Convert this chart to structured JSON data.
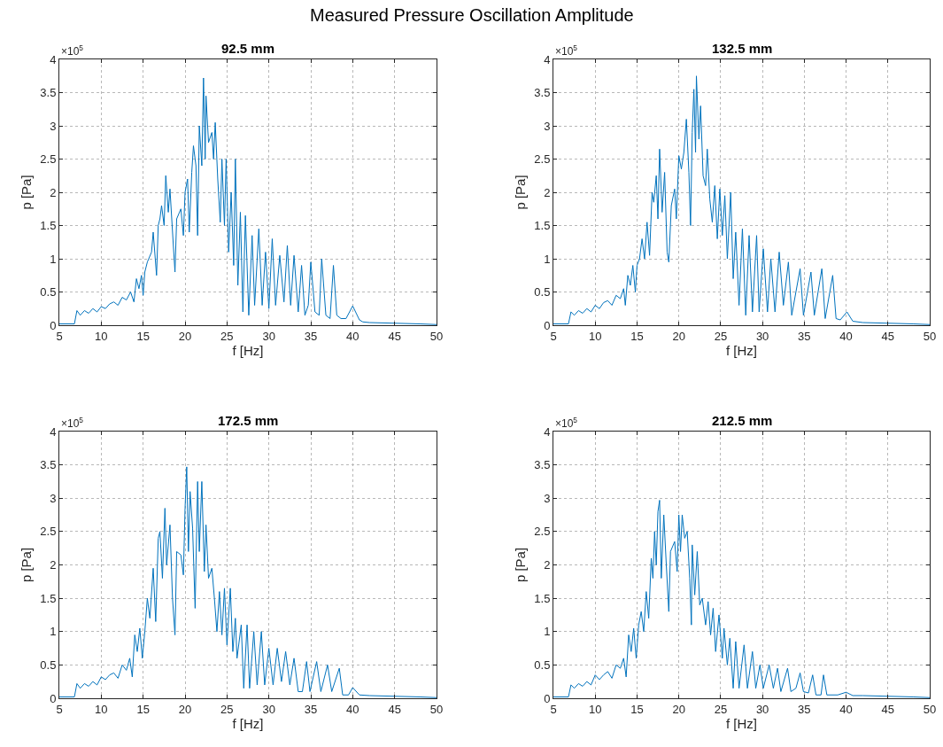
{
  "chart_data": [
    {
      "type": "line",
      "title": "92.5 mm",
      "xlabel": "f [Hz]",
      "ylabel": "p [Pa]",
      "annotations": [
        "×10$^{5}$",
        "Measured Pressure Oscillation Amplitude"
      ],
      "xlim": [
        5,
        50
      ],
      "ylim": [
        0,
        4
      ],
      "xticks": [
        5,
        10,
        15,
        20,
        25,
        30,
        35,
        40,
        45,
        50
      ],
      "yticks": [
        0,
        0.5,
        1,
        1.5,
        2,
        2.5,
        3,
        3.5,
        4
      ],
      "grid": true,
      "x": [
        5,
        6.8,
        7.1,
        7.5,
        8,
        8.5,
        9,
        9.5,
        10,
        10.5,
        11,
        11.5,
        12,
        12.5,
        13,
        13.5,
        13.9,
        14.2,
        14.5,
        14.8,
        15,
        15.2,
        15.5,
        16,
        16.2,
        16.6,
        16.8,
        17,
        17.2,
        17.5,
        17.7,
        18,
        18.2,
        18.6,
        18.8,
        19,
        19.5,
        19.8,
        20,
        20.3,
        20.5,
        20.8,
        21,
        21.3,
        21.5,
        21.7,
        22,
        22.2,
        22.4,
        22.5,
        22.8,
        23.2,
        23.4,
        23.6,
        23.9,
        24.2,
        24.4,
        24.7,
        24.9,
        25.2,
        25.5,
        25.8,
        26,
        26.3,
        26.6,
        26.9,
        27.2,
        27.6,
        28,
        28.3,
        28.8,
        29.2,
        29.6,
        30,
        30.4,
        30.8,
        31.3,
        31.8,
        32.2,
        32.6,
        33,
        33.5,
        33.9,
        34.3,
        34.7,
        35,
        35.5,
        36,
        36.3,
        36.8,
        37.3,
        37.7,
        38.1,
        38.6,
        39.2,
        40,
        40.8,
        41.2,
        42,
        45,
        48,
        50
      ],
      "series": [
        {
          "color": "#0072bd",
          "values": [
            0.02,
            0.02,
            0.22,
            0.15,
            0.22,
            0.18,
            0.25,
            0.2,
            0.28,
            0.25,
            0.32,
            0.35,
            0.3,
            0.42,
            0.38,
            0.5,
            0.35,
            0.7,
            0.55,
            0.75,
            0.45,
            0.8,
            0.95,
            1.1,
            1.4,
            0.75,
            1.5,
            1.6,
            1.8,
            1.5,
            2.25,
            1.7,
            2.05,
            1.2,
            0.8,
            1.6,
            1.75,
            1.35,
            2.0,
            2.2,
            1.4,
            2.3,
            2.7,
            2.4,
            1.35,
            3.0,
            2.4,
            3.72,
            2.5,
            3.45,
            2.75,
            2.9,
            2.5,
            3.05,
            2.2,
            1.55,
            2.5,
            1.5,
            2.5,
            1.1,
            2.0,
            0.9,
            2.5,
            0.6,
            1.7,
            0.2,
            1.65,
            0.15,
            1.35,
            0.3,
            1.45,
            0.3,
            1.1,
            0.25,
            1.3,
            0.3,
            1.05,
            0.35,
            1.2,
            0.3,
            1.05,
            0.2,
            0.9,
            0.15,
            0.3,
            0.95,
            0.2,
            0.15,
            1.0,
            0.15,
            0.1,
            0.9,
            0.15,
            0.1,
            0.1,
            0.29,
            0.08,
            0.05,
            0.04,
            0.03,
            0.02,
            0.01
          ]
        }
      ]
    },
    {
      "type": "line",
      "title": "132.5 mm",
      "xlabel": "f [Hz]",
      "ylabel": "p [Pa]",
      "annotations": [
        "×10$^{5}$"
      ],
      "xlim": [
        5,
        50
      ],
      "ylim": [
        0,
        4
      ],
      "xticks": [
        5,
        10,
        15,
        20,
        25,
        30,
        35,
        40,
        45,
        50
      ],
      "yticks": [
        0,
        0.5,
        1,
        1.5,
        2,
        2.5,
        3,
        3.5,
        4
      ],
      "grid": true,
      "x": [
        5,
        6.8,
        7.1,
        7.5,
        8,
        8.5,
        9,
        9.5,
        10,
        10.5,
        11,
        11.5,
        12,
        12.5,
        13,
        13.4,
        13.6,
        13.9,
        14.2,
        14.5,
        14.8,
        15,
        15.3,
        15.6,
        15.9,
        16.2,
        16.5,
        16.8,
        17,
        17.3,
        17.5,
        17.7,
        18,
        18.3,
        18.6,
        18.8,
        19.1,
        19.5,
        19.7,
        20,
        20.3,
        20.6,
        20.9,
        21.2,
        21.4,
        21.6,
        21.8,
        22,
        22.1,
        22.4,
        22.6,
        22.9,
        23.2,
        23.4,
        23.7,
        24,
        24.3,
        24.6,
        24.9,
        25.2,
        25.5,
        25.8,
        26.2,
        26.5,
        26.8,
        27.2,
        27.6,
        28,
        28.4,
        28.8,
        29.3,
        29.6,
        30.1,
        30.6,
        31,
        31.5,
        32,
        32.5,
        33.1,
        33.5,
        34.5,
        34.9,
        35.8,
        36.2,
        37.1,
        37.5,
        38.4,
        38.8,
        39.3,
        40.1,
        40.8,
        42,
        45,
        48,
        50
      ],
      "series": [
        {
          "color": "#0072bd",
          "values": [
            0.02,
            0.02,
            0.2,
            0.15,
            0.22,
            0.18,
            0.25,
            0.2,
            0.3,
            0.25,
            0.34,
            0.37,
            0.3,
            0.45,
            0.4,
            0.55,
            0.3,
            0.75,
            0.6,
            0.9,
            0.5,
            0.9,
            1.0,
            1.3,
            1.0,
            1.55,
            1.05,
            2.0,
            1.85,
            2.25,
            1.6,
            2.65,
            1.7,
            2.3,
            1.1,
            0.95,
            1.8,
            2.05,
            1.6,
            2.55,
            2.35,
            2.6,
            3.1,
            2.3,
            1.5,
            2.9,
            3.55,
            2.6,
            3.75,
            2.8,
            3.3,
            2.25,
            2.1,
            2.65,
            1.9,
            1.55,
            2.1,
            1.3,
            2.05,
            1.35,
            1.95,
            1.0,
            2.0,
            0.7,
            1.4,
            0.3,
            1.45,
            0.15,
            1.35,
            0.2,
            1.35,
            0.2,
            1.15,
            0.2,
            1.0,
            0.2,
            1.1,
            0.3,
            0.95,
            0.15,
            0.85,
            0.15,
            0.8,
            0.15,
            0.85,
            0.1,
            0.75,
            0.1,
            0.08,
            0.2,
            0.06,
            0.04,
            0.03,
            0.02,
            0.01
          ]
        }
      ]
    },
    {
      "type": "line",
      "title": "172.5 mm",
      "xlabel": "f [Hz]",
      "ylabel": "p [Pa]",
      "annotations": [
        "×10$^{5}$"
      ],
      "xlim": [
        5,
        50
      ],
      "ylim": [
        0,
        4
      ],
      "xticks": [
        5,
        10,
        15,
        20,
        25,
        30,
        35,
        40,
        45,
        50
      ],
      "yticks": [
        0,
        0.5,
        1,
        1.5,
        2,
        2.5,
        3,
        3.5,
        4
      ],
      "grid": true,
      "x": [
        5,
        6.8,
        7.1,
        7.5,
        8,
        8.5,
        9,
        9.5,
        10,
        10.5,
        11,
        11.5,
        12,
        12.5,
        13,
        13.4,
        13.7,
        14,
        14.3,
        14.6,
        14.9,
        15.2,
        15.5,
        15.8,
        16.2,
        16.5,
        16.8,
        17,
        17.3,
        17.6,
        17.8,
        18.2,
        18.5,
        18.8,
        19,
        19.5,
        19.8,
        20,
        20.2,
        20.4,
        20.6,
        20.9,
        21.2,
        21.5,
        21.7,
        22,
        22.3,
        22.5,
        22.8,
        23.2,
        23.5,
        23.8,
        24.1,
        24.4,
        24.7,
        25,
        25.4,
        25.7,
        26,
        26.2,
        26.7,
        27,
        27.4,
        27.7,
        28.2,
        28.6,
        29.1,
        29.5,
        30,
        30.5,
        31,
        31.5,
        32,
        32.5,
        33,
        33.5,
        34,
        34.5,
        34.9,
        35.7,
        36.2,
        37,
        37.5,
        38.4,
        38.8,
        39.5,
        40,
        40.8,
        42,
        45,
        48,
        50
      ],
      "series": [
        {
          "color": "#0072bd",
          "values": [
            0.02,
            0.02,
            0.22,
            0.15,
            0.22,
            0.18,
            0.25,
            0.2,
            0.32,
            0.28,
            0.35,
            0.38,
            0.3,
            0.5,
            0.42,
            0.6,
            0.32,
            0.95,
            0.7,
            1.05,
            0.6,
            1.0,
            1.5,
            1.2,
            1.95,
            1.15,
            2.4,
            2.5,
            1.8,
            2.85,
            2.0,
            2.6,
            1.5,
            0.95,
            2.2,
            2.15,
            1.85,
            2.85,
            3.47,
            2.2,
            3.1,
            2.55,
            1.35,
            3.25,
            2.2,
            3.25,
            1.9,
            2.6,
            1.8,
            1.95,
            1.5,
            1.0,
            1.6,
            0.95,
            1.65,
            0.8,
            1.65,
            0.7,
            1.2,
            0.6,
            1.1,
            0.15,
            1.1,
            0.15,
            1.0,
            0.2,
            1.0,
            0.2,
            0.75,
            0.2,
            0.75,
            0.25,
            0.7,
            0.2,
            0.6,
            0.1,
            0.1,
            0.55,
            0.1,
            0.55,
            0.1,
            0.5,
            0.1,
            0.45,
            0.05,
            0.05,
            0.16,
            0.05,
            0.04,
            0.03,
            0.02,
            0.01
          ]
        }
      ]
    },
    {
      "type": "line",
      "title": "212.5 mm",
      "xlabel": "f [Hz]",
      "ylabel": "p [Pa]",
      "annotations": [
        "×10$^{5}$"
      ],
      "xlim": [
        5,
        50
      ],
      "ylim": [
        0,
        4
      ],
      "xticks": [
        5,
        10,
        15,
        20,
        25,
        30,
        35,
        40,
        45,
        50
      ],
      "yticks": [
        0,
        0.5,
        1,
        1.5,
        2,
        2.5,
        3,
        3.5,
        4
      ],
      "grid": true,
      "x": [
        5,
        6.8,
        7.1,
        7.5,
        8,
        8.5,
        9,
        9.5,
        10,
        10.5,
        11,
        11.5,
        12,
        12.5,
        13,
        13.4,
        13.7,
        14,
        14.3,
        14.6,
        14.9,
        15.2,
        15.5,
        15.8,
        16.1,
        16.4,
        16.7,
        16.9,
        17.1,
        17.3,
        17.5,
        17.7,
        17.9,
        18.2,
        18.5,
        18.8,
        19,
        19.5,
        19.8,
        20,
        20.2,
        20.4,
        20.7,
        21,
        21.3,
        21.5,
        21.6,
        21.9,
        22.2,
        22.5,
        22.8,
        23.2,
        23.5,
        23.8,
        24.1,
        24.4,
        24.8,
        25.2,
        25.4,
        25.8,
        26.1,
        26.5,
        26.8,
        27.2,
        27.8,
        28.2,
        28.8,
        29.2,
        29.7,
        30.1,
        30.8,
        31.3,
        31.8,
        32.2,
        33,
        33.4,
        34,
        34.5,
        34.9,
        35.5,
        36,
        36.4,
        37,
        37.3,
        37.7,
        39,
        40,
        40.8,
        42,
        45,
        48,
        50
      ],
      "series": [
        {
          "color": "#0072bd",
          "values": [
            0.02,
            0.02,
            0.2,
            0.15,
            0.22,
            0.18,
            0.25,
            0.2,
            0.35,
            0.28,
            0.35,
            0.4,
            0.3,
            0.5,
            0.45,
            0.6,
            0.32,
            0.95,
            0.7,
            1.05,
            0.6,
            1.1,
            1.3,
            1.0,
            1.6,
            1.2,
            2.1,
            1.8,
            2.5,
            2.0,
            2.8,
            2.97,
            1.8,
            2.75,
            2.0,
            1.3,
            2.2,
            2.35,
            1.9,
            2.75,
            2.2,
            2.75,
            2.4,
            2.5,
            1.8,
            1.1,
            2.3,
            1.55,
            2.2,
            1.4,
            1.5,
            1.1,
            1.45,
            0.95,
            1.35,
            0.7,
            1.25,
            0.6,
            1.05,
            0.5,
            0.9,
            0.15,
            0.85,
            0.15,
            0.8,
            0.15,
            0.7,
            0.15,
            0.5,
            0.15,
            0.5,
            0.15,
            0.45,
            0.1,
            0.45,
            0.1,
            0.15,
            0.38,
            0.1,
            0.08,
            0.35,
            0.05,
            0.05,
            0.35,
            0.05,
            0.05,
            0.09,
            0.04,
            0.04,
            0.03,
            0.02,
            0.01
          ]
        }
      ]
    }
  ]
}
